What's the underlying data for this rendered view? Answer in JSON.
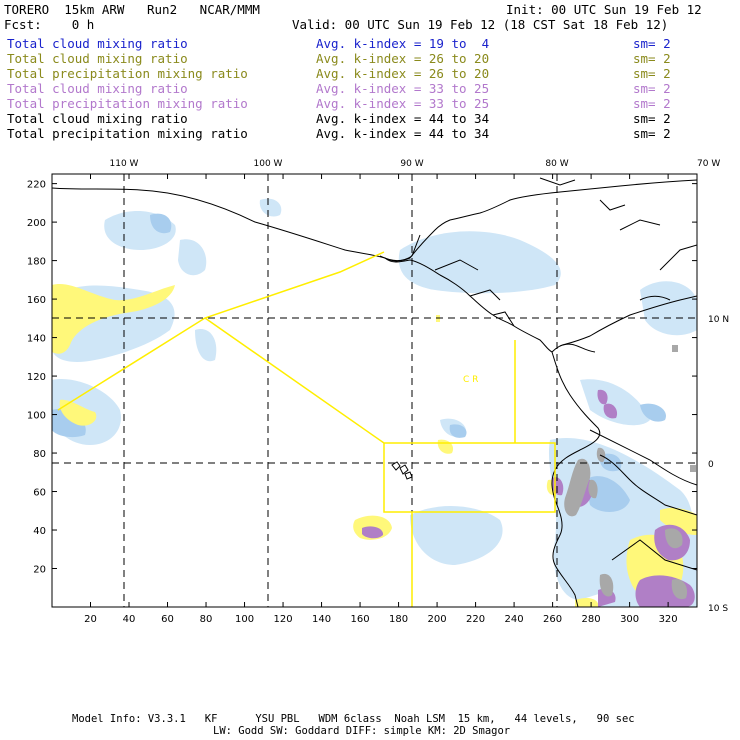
{
  "header": {
    "model": "TORERO  15km ARW   Run2   NCAR/MMM",
    "init": "Init: 00 UTC Sun 19 Feb 12",
    "fcst": "Fcst:    0 h",
    "valid": "Valid: 00 UTC Sun 19 Feb 12 (18 CST Sat 18 Feb 12)"
  },
  "fields": [
    {
      "name": "Total cloud mixing ratio",
      "kindex": "Avg. k-index = 19 to  4",
      "sm": "sm= 2",
      "color": "#1a22cc"
    },
    {
      "name": "Total cloud mixing ratio",
      "kindex": "Avg. k-index = 26 to 20",
      "sm": "sm= 2",
      "color": "#8a8a1c"
    },
    {
      "name": "Total precipitation mixing ratio",
      "kindex": "Avg. k-index = 26 to 20",
      "sm": "sm= 2",
      "color": "#8a8a1c"
    },
    {
      "name": "Total cloud mixing ratio",
      "kindex": "Avg. k-index = 33 to 25",
      "sm": "sm= 2",
      "color": "#b278cc"
    },
    {
      "name": "Total precipitation mixing ratio",
      "kindex": "Avg. k-index = 33 to 25",
      "sm": "sm= 2",
      "color": "#b278cc"
    },
    {
      "name": "Total cloud mixing ratio",
      "kindex": "Avg. k-index = 44 to 34",
      "sm": "sm= 2",
      "color": "#000000"
    },
    {
      "name": "Total precipitation mixing ratio",
      "kindex": "Avg. k-index = 44 to 34",
      "sm": "sm= 2",
      "color": "#000000"
    }
  ],
  "map": {
    "lon_labels": [
      "110 W",
      "100 W",
      "90 W",
      "80 W",
      "70 W"
    ],
    "lat_labels": [
      "10 N",
      "0",
      "10 S"
    ],
    "x_ticks": [
      "20",
      "40",
      "60",
      "80",
      "100",
      "120",
      "140",
      "160",
      "180",
      "200",
      "220",
      "240",
      "260",
      "280",
      "300",
      "320"
    ],
    "y_ticks": [
      "220",
      "200",
      "180",
      "160",
      "140",
      "120",
      "100",
      "80",
      "60",
      "40",
      "20"
    ],
    "annotation": "C  R",
    "colors": {
      "cloud_light": "#cfe6f7",
      "cloud_mid": "#a8cdee",
      "yellow": "#fff87a",
      "purple": "#b07fc6",
      "gray": "#a8a8a8",
      "outline": "#ffee00"
    }
  },
  "footer": {
    "line1": "Model Info: V3.3.1   KF      YSU PBL   WDM 6class  Noah LSM  15 km,   44 levels,   90 sec",
    "line2": "LW: Godd SW: Goddard DIFF: simple KM: 2D Smagor"
  }
}
